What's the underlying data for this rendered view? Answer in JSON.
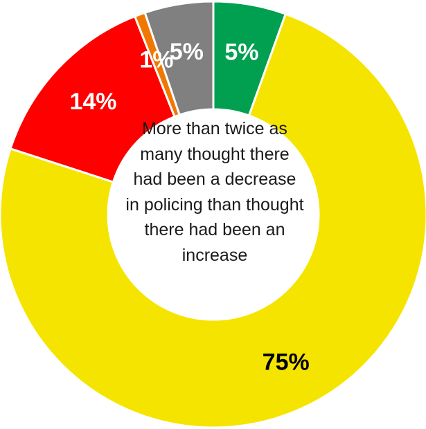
{
  "chart_data": {
    "type": "pie",
    "subtype": "donut",
    "start": "top",
    "direction": "clockwise",
    "segments": [
      {
        "label": "5%",
        "value": 5.5,
        "color": "#00A050",
        "label_color": "#ffffff"
      },
      {
        "label": "75%",
        "value": 74.5,
        "color": "#F5E400",
        "label_color": "#000000"
      },
      {
        "label": "14%",
        "value": 14.0,
        "color": "#FF0000",
        "label_color": "#ffffff"
      },
      {
        "label": "1%",
        "value": 0.8,
        "color": "#F07800",
        "label_color": "#ffffff"
      },
      {
        "label": "5%",
        "value": 5.2,
        "color": "#808080",
        "label_color": "#ffffff"
      }
    ],
    "center_text": "More than twice as many thought there had been a decrease in policing than thought there had been an increase",
    "legend": "none"
  }
}
